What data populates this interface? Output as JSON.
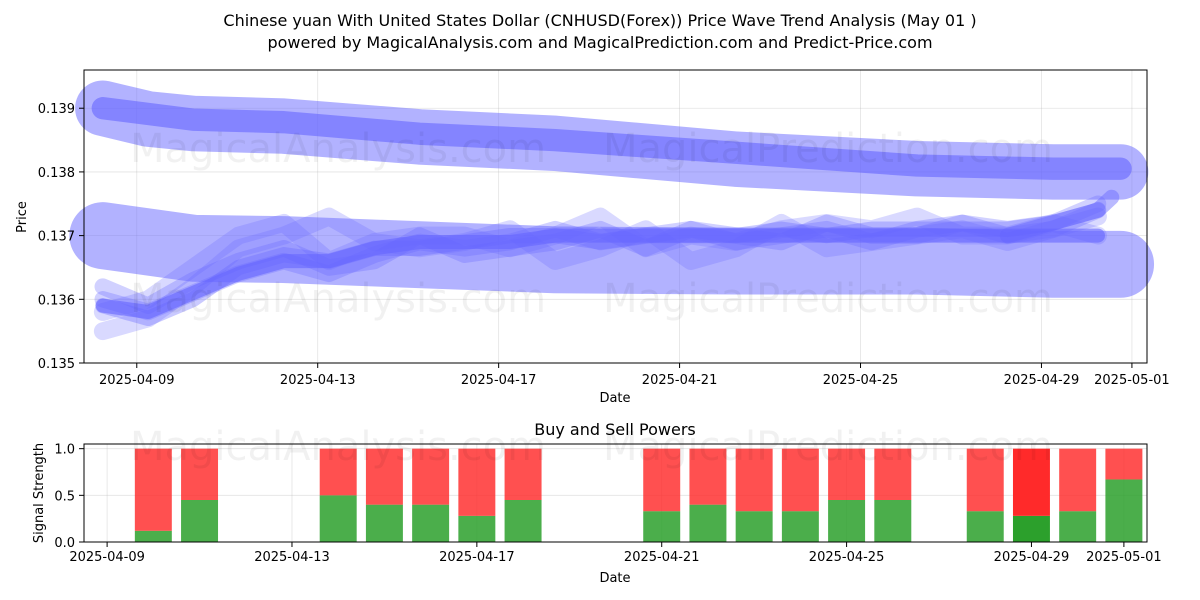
{
  "header": {
    "title_line1": "Chinese yuan With United States Dollar (CNHUSD(Forex)) Price Wave Trend Analysis (May 01 )",
    "title_line2": "powered by MagicalAnalysis.com and MagicalPrediction.com and Predict-Price.com"
  },
  "watermarks": {
    "left": "MagicalAnalysis.com",
    "right": "MagicalPrediction.com"
  },
  "colors": {
    "band": "#6666ff",
    "buy": "#2ca02c",
    "sell": "#ff2a2a"
  },
  "chart_data": [
    {
      "type": "line",
      "name": "price-wave",
      "title": "",
      "xlabel": "Date",
      "ylabel": "Price",
      "x_range": [
        "2025-04-07 20:00",
        "2025-05-01 08:00"
      ],
      "ylim": [
        0.135,
        0.1396
      ],
      "x_tick_labels": [
        "2025-04-09",
        "2025-04-13",
        "2025-04-17",
        "2025-04-21",
        "2025-04-25",
        "2025-04-29",
        "2025-05-01"
      ],
      "y_tick_values": [
        0.135,
        0.136,
        0.137,
        0.138,
        0.139
      ],
      "y_tick_labels": [
        "0.135",
        "0.136",
        "0.137",
        "0.138",
        "0.139"
      ],
      "grid": true,
      "bands": [
        {
          "name": "upper-wide",
          "width": 0.00087,
          "opacity": 0.5,
          "x": [
            0,
            1,
            2,
            4,
            7,
            10,
            14,
            18,
            21,
            22.5
          ],
          "y": [
            0.139,
            0.13883,
            0.13876,
            0.13872,
            0.13855,
            0.13845,
            0.1382,
            0.13805,
            0.138,
            0.138
          ]
        },
        {
          "name": "upper-center",
          "width": 0.00035,
          "opacity": 0.6,
          "x": [
            0,
            2,
            4,
            7,
            10,
            14,
            18,
            21,
            22.5
          ],
          "y": [
            0.139,
            0.13882,
            0.13878,
            0.1386,
            0.1385,
            0.1383,
            0.1381,
            0.13805,
            0.13805
          ]
        },
        {
          "name": "mid-wide",
          "width": 0.00105,
          "opacity": 0.5,
          "x": [
            0,
            2,
            4,
            7,
            10,
            14,
            18,
            21,
            22.5
          ],
          "y": [
            0.137,
            0.1368,
            0.13678,
            0.1367,
            0.13662,
            0.1366,
            0.1366,
            0.13655,
            0.13655
          ]
        },
        {
          "name": "wave-1",
          "width": 0.00028,
          "opacity": 0.25,
          "x": [
            0,
            1,
            2,
            3,
            4,
            5,
            6,
            7,
            8,
            9,
            10,
            11,
            12,
            13,
            14,
            15,
            16,
            17,
            18,
            19,
            20,
            21,
            22
          ],
          "y": [
            0.1358,
            0.136,
            0.1365,
            0.137,
            0.1372,
            0.1366,
            0.1369,
            0.137,
            0.137,
            0.1368,
            0.137,
            0.1373,
            0.1368,
            0.137,
            0.1369,
            0.1371,
            0.1372,
            0.1371,
            0.1373,
            0.137,
            0.137,
            0.1372,
            0.137
          ]
        },
        {
          "name": "wave-2",
          "width": 0.00028,
          "opacity": 0.25,
          "x": [
            0,
            1,
            2,
            3,
            4,
            5,
            6,
            7,
            8,
            9,
            10,
            11,
            12,
            13,
            14,
            15,
            16,
            17,
            18,
            19,
            20,
            21,
            22
          ],
          "y": [
            0.1355,
            0.1357,
            0.1362,
            0.1368,
            0.137,
            0.1373,
            0.1369,
            0.1368,
            0.1369,
            0.1371,
            0.1366,
            0.1368,
            0.1371,
            0.1366,
            0.1368,
            0.1372,
            0.1368,
            0.1369,
            0.137,
            0.1371,
            0.1369,
            0.1371,
            0.1373
          ]
        },
        {
          "name": "wave-3",
          "width": 0.00026,
          "opacity": 0.3,
          "x": [
            0,
            1,
            2,
            3,
            4,
            5,
            6,
            7,
            8,
            9,
            10,
            11,
            12,
            13,
            14,
            15,
            16,
            17,
            18,
            19,
            20,
            21,
            22
          ],
          "y": [
            0.136,
            0.1358,
            0.1361,
            0.1364,
            0.1366,
            0.1364,
            0.1367,
            0.1369,
            0.1368,
            0.1369,
            0.1371,
            0.1369,
            0.137,
            0.1371,
            0.1369,
            0.137,
            0.1371,
            0.1369,
            0.1371,
            0.1372,
            0.137,
            0.1371,
            0.1374
          ]
        },
        {
          "name": "wave-4",
          "width": 0.00026,
          "opacity": 0.3,
          "x": [
            0,
            1,
            2,
            3,
            4,
            5,
            6,
            7,
            8,
            9,
            10,
            11,
            12,
            13,
            14,
            15,
            16,
            17,
            18,
            19,
            20,
            21,
            22
          ],
          "y": [
            0.1362,
            0.1359,
            0.1363,
            0.1366,
            0.1368,
            0.1365,
            0.1366,
            0.137,
            0.1367,
            0.1368,
            0.1369,
            0.1371,
            0.1368,
            0.1371,
            0.137,
            0.1369,
            0.1372,
            0.137,
            0.137,
            0.1372,
            0.1371,
            0.1372,
            0.1375
          ]
        },
        {
          "name": "wave-5",
          "width": 0.00024,
          "opacity": 0.35,
          "x": [
            0,
            1,
            2,
            3,
            4,
            5,
            6,
            7,
            8,
            9,
            10,
            11,
            12,
            13,
            14,
            15,
            16,
            17,
            18,
            19,
            20,
            21,
            22
          ],
          "y": [
            0.1359,
            0.1357,
            0.136,
            0.1365,
            0.1367,
            0.1366,
            0.1368,
            0.1368,
            0.1369,
            0.137,
            0.137,
            0.1369,
            0.137,
            0.137,
            0.137,
            0.1371,
            0.137,
            0.1371,
            0.1371,
            0.1371,
            0.1371,
            0.1372,
            0.1374
          ]
        },
        {
          "name": "center-trend",
          "width": 0.00022,
          "opacity": 0.6,
          "x": [
            0,
            1,
            2,
            3,
            4,
            5,
            6,
            7,
            8,
            9,
            10,
            11,
            12,
            13,
            14,
            15,
            16,
            17,
            18,
            19,
            20,
            21,
            22
          ],
          "y": [
            0.1359,
            0.1358,
            0.1361,
            0.1364,
            0.1366,
            0.1366,
            0.1368,
            0.1369,
            0.1369,
            0.1369,
            0.137,
            0.137,
            0.137,
            0.137,
            0.137,
            0.137,
            0.137,
            0.137,
            0.137,
            0.137,
            0.137,
            0.137,
            0.137
          ]
        },
        {
          "name": "end-spike",
          "width": 0.00024,
          "opacity": 0.45,
          "x": [
            20,
            21,
            22,
            22.3
          ],
          "y": [
            0.137,
            0.1372,
            0.1374,
            0.1376
          ]
        }
      ]
    },
    {
      "type": "bar",
      "name": "buy-sell-powers",
      "title": "Buy and Sell Powers",
      "xlabel": "Date",
      "ylabel": "Signal Strength",
      "x_range": [
        "2025-04-08 12:00",
        "2025-05-01 12:00"
      ],
      "ylim": [
        0,
        1.05
      ],
      "x_tick_labels": [
        "2025-04-09",
        "2025-04-13",
        "2025-04-17",
        "2025-04-21",
        "2025-04-25",
        "2025-04-29",
        "2025-05-01"
      ],
      "y_tick_values": [
        0.0,
        0.5,
        1.0
      ],
      "y_tick_labels": [
        "0.0",
        "0.5",
        "1.0"
      ],
      "grid": true,
      "categories": [
        "2025-04-10",
        "2025-04-11",
        "2025-04-14",
        "2025-04-15",
        "2025-04-16",
        "2025-04-17",
        "2025-04-18",
        "2025-04-21",
        "2025-04-22",
        "2025-04-23",
        "2025-04-24",
        "2025-04-25",
        "2025-04-26",
        "2025-04-28",
        "2025-04-29",
        "2025-04-30",
        "2025-05-01"
      ],
      "series": [
        {
          "name": "buy",
          "values": [
            0.12,
            0.45,
            0.5,
            0.4,
            0.4,
            0.28,
            0.45,
            0.33,
            0.4,
            0.33,
            0.33,
            0.45,
            0.45,
            0.33,
            0.28,
            0.33,
            0.67
          ]
        },
        {
          "name": "sell",
          "values": [
            0.88,
            0.55,
            0.5,
            0.6,
            0.6,
            0.72,
            0.55,
            0.67,
            0.6,
            0.67,
            0.67,
            0.55,
            0.55,
            0.67,
            0.72,
            0.67,
            0.33
          ]
        }
      ]
    }
  ]
}
